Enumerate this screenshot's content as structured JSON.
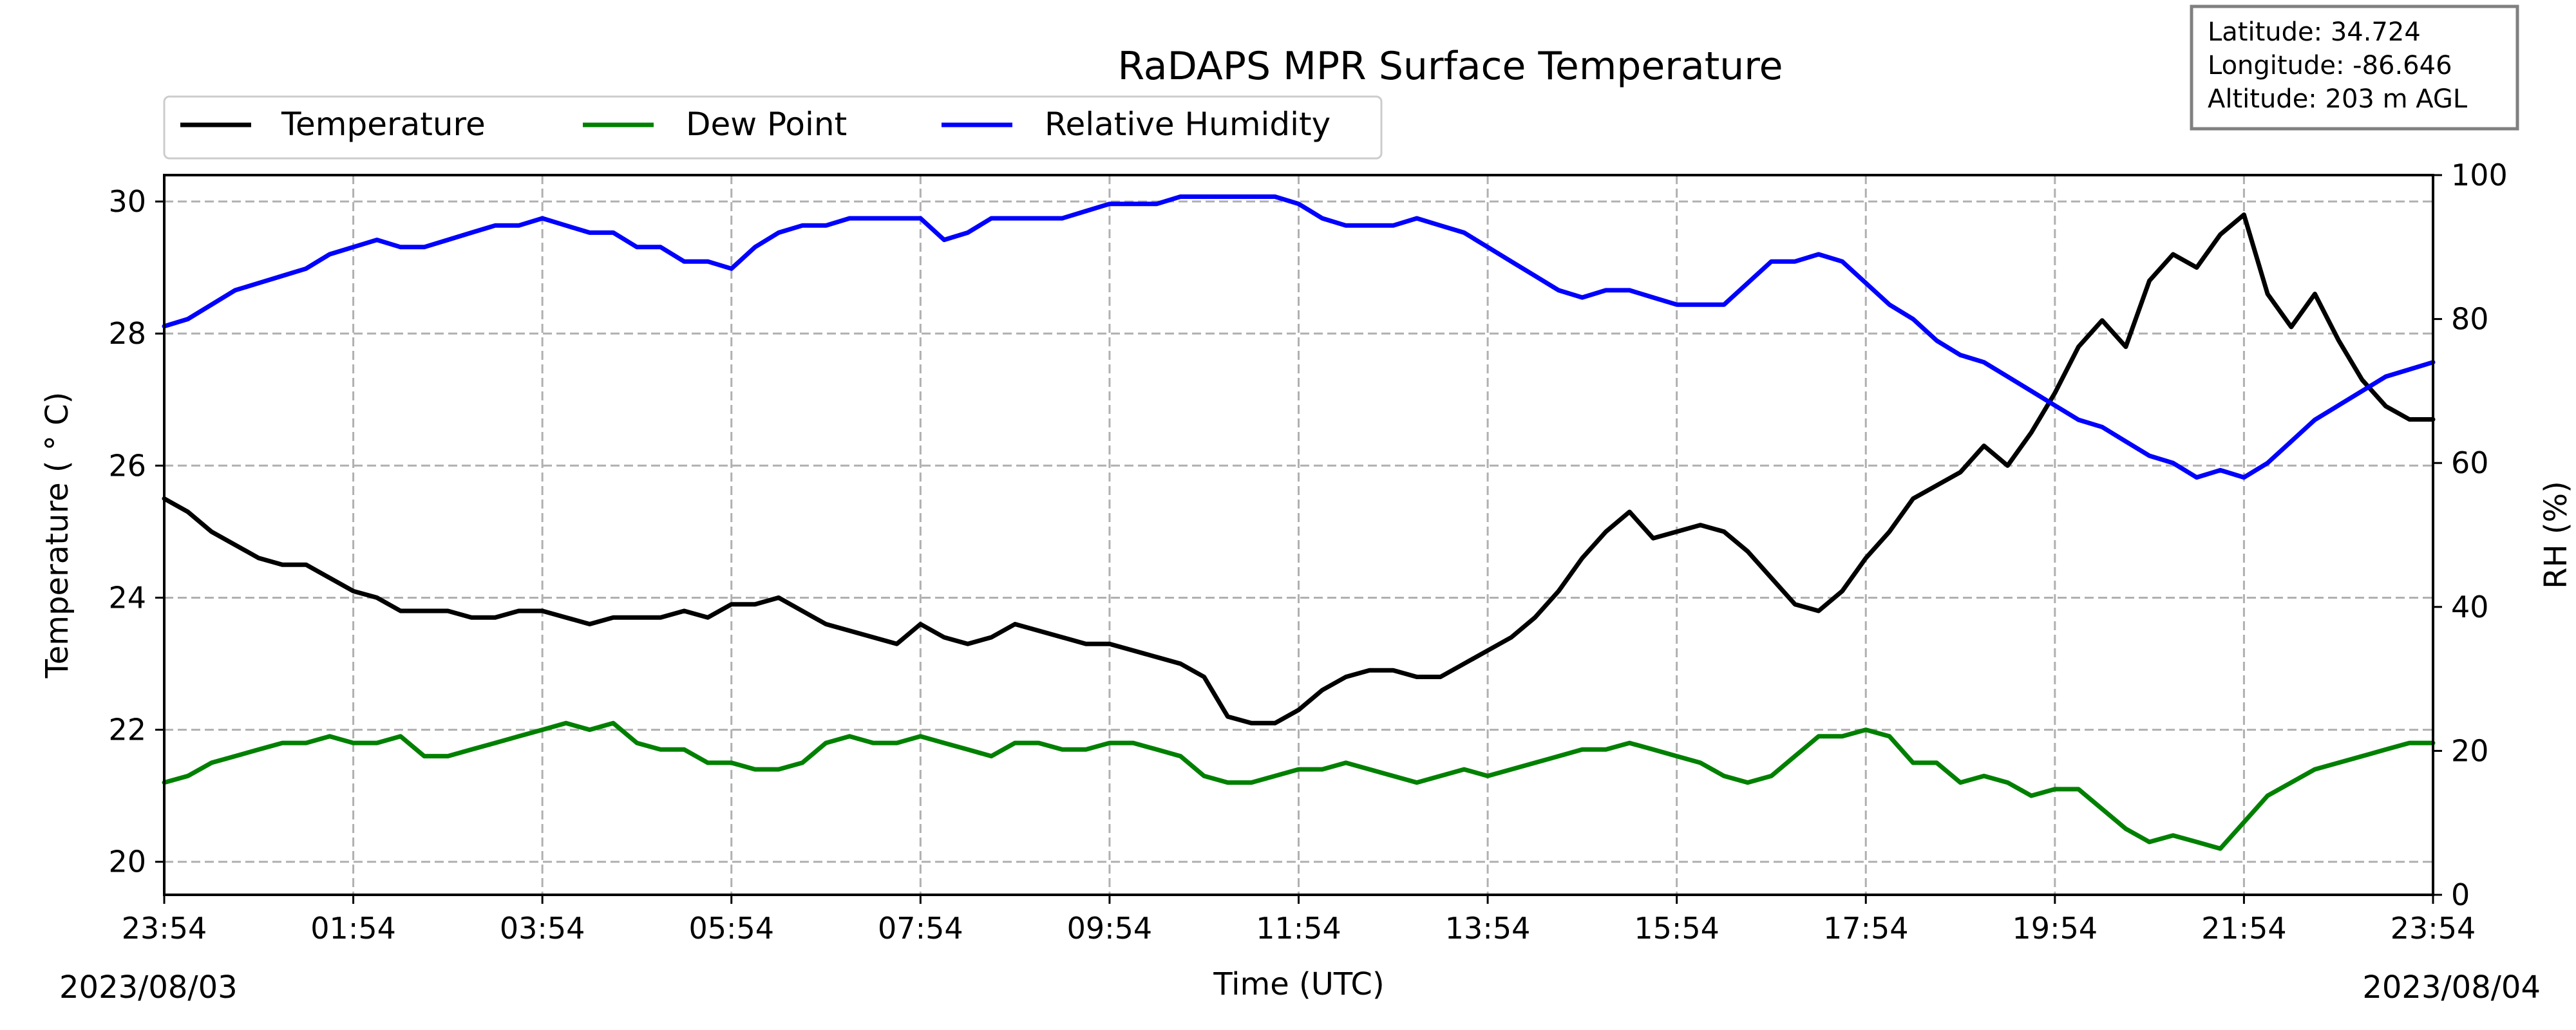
{
  "chart_data": {
    "type": "line",
    "title": "RaDAPS MPR Surface Temperature",
    "xlabel": "Time (UTC)",
    "ylabel": "Temperature ( $^\\circ$C)",
    "ylabel_display": "Temperature ( ° C)",
    "y2label": "RH (%)",
    "x_ticks": [
      "23:54",
      "01:54",
      "03:54",
      "05:54",
      "07:54",
      "09:54",
      "11:54",
      "13:54",
      "15:54",
      "17:54",
      "19:54",
      "21:54",
      "23:54"
    ],
    "x_range_hours": [
      0,
      24
    ],
    "start_date": "2023/08/03",
    "end_date": "2023/08/04",
    "ylim": [
      19.5,
      30.4
    ],
    "yticks": [
      20,
      22,
      24,
      26,
      28,
      30
    ],
    "y2lim": [
      0,
      100
    ],
    "y2ticks": [
      0,
      20,
      40,
      60,
      80,
      100
    ],
    "grid": true,
    "legend_placement": "top-left, outside",
    "info_box": {
      "lines": [
        "Latitude: 34.724",
        "Longitude: -86.646",
        "Altitude: 203 m AGL"
      ]
    },
    "series": [
      {
        "name": "Temperature",
        "axis": "left",
        "color": "#000000",
        "x": [
          0,
          0.25,
          0.5,
          0.75,
          1,
          1.25,
          1.5,
          1.75,
          2,
          2.25,
          2.5,
          2.75,
          3,
          3.25,
          3.5,
          3.75,
          4,
          4.25,
          4.5,
          4.75,
          5,
          5.25,
          5.5,
          5.75,
          6,
          6.25,
          6.5,
          6.75,
          7,
          7.25,
          7.5,
          7.75,
          8,
          8.25,
          8.5,
          8.75,
          9,
          9.25,
          9.5,
          9.75,
          10,
          10.25,
          10.5,
          10.75,
          11,
          11.25,
          11.5,
          11.75,
          12,
          12.25,
          12.5,
          12.75,
          13,
          13.25,
          13.5,
          13.75,
          14,
          14.25,
          14.5,
          14.75,
          15,
          15.25,
          15.5,
          15.75,
          16,
          16.25,
          16.5,
          16.75,
          17,
          17.25,
          17.5,
          17.75,
          18,
          18.25,
          18.5,
          18.75,
          19,
          19.25,
          19.5,
          19.75,
          20,
          20.25,
          20.5,
          20.75,
          21,
          21.25,
          21.5,
          21.75,
          22,
          22.25,
          22.5,
          22.75,
          23,
          23.25,
          23.5,
          23.75,
          24
        ],
        "y": [
          25.5,
          25.3,
          25.0,
          24.8,
          24.6,
          24.5,
          24.5,
          24.3,
          24.1,
          24.0,
          23.8,
          23.8,
          23.8,
          23.7,
          23.7,
          23.8,
          23.8,
          23.7,
          23.6,
          23.7,
          23.7,
          23.7,
          23.8,
          23.7,
          23.9,
          23.9,
          24.0,
          23.8,
          23.6,
          23.5,
          23.4,
          23.3,
          23.6,
          23.4,
          23.3,
          23.4,
          23.6,
          23.5,
          23.4,
          23.3,
          23.3,
          23.2,
          23.1,
          23.0,
          22.8,
          22.2,
          22.1,
          22.1,
          22.3,
          22.6,
          22.8,
          22.9,
          22.9,
          22.8,
          22.8,
          23.0,
          23.2,
          23.4,
          23.7,
          24.1,
          24.6,
          25.0,
          25.3,
          24.9,
          25.0,
          25.1,
          25.0,
          24.7,
          24.3,
          23.9,
          23.8,
          24.1,
          24.6,
          25.0,
          25.5,
          25.7,
          25.9,
          26.3,
          26.0,
          26.5,
          27.1,
          27.8,
          28.2,
          27.8,
          28.8,
          29.2,
          29.0,
          29.5,
          29.8,
          28.6,
          28.1,
          28.6,
          27.9,
          27.3,
          26.9,
          26.7,
          26.7
        ]
      },
      {
        "name": "Dew Point",
        "axis": "left",
        "color": "#008000",
        "x": [
          0,
          0.25,
          0.5,
          0.75,
          1,
          1.25,
          1.5,
          1.75,
          2,
          2.25,
          2.5,
          2.75,
          3,
          3.25,
          3.5,
          3.75,
          4,
          4.25,
          4.5,
          4.75,
          5,
          5.25,
          5.5,
          5.75,
          6,
          6.25,
          6.5,
          6.75,
          7,
          7.25,
          7.5,
          7.75,
          8,
          8.25,
          8.5,
          8.75,
          9,
          9.25,
          9.5,
          9.75,
          10,
          10.25,
          10.5,
          10.75,
          11,
          11.25,
          11.5,
          11.75,
          12,
          12.25,
          12.5,
          12.75,
          13,
          13.25,
          13.5,
          13.75,
          14,
          14.25,
          14.5,
          14.75,
          15,
          15.25,
          15.5,
          15.75,
          16,
          16.25,
          16.5,
          16.75,
          17,
          17.25,
          17.5,
          17.75,
          18,
          18.25,
          18.5,
          18.75,
          19,
          19.25,
          19.5,
          19.75,
          20,
          20.25,
          20.5,
          20.75,
          21,
          21.25,
          21.5,
          21.75,
          22,
          22.25,
          22.5,
          22.75,
          23,
          23.25,
          23.5,
          23.75,
          24
        ],
        "y": [
          21.2,
          21.3,
          21.5,
          21.6,
          21.7,
          21.8,
          21.8,
          21.9,
          21.8,
          21.8,
          21.9,
          21.6,
          21.6,
          21.7,
          21.8,
          21.9,
          22.0,
          22.1,
          22.0,
          22.1,
          21.8,
          21.7,
          21.7,
          21.5,
          21.5,
          21.4,
          21.4,
          21.5,
          21.8,
          21.9,
          21.8,
          21.8,
          21.9,
          21.8,
          21.7,
          21.6,
          21.8,
          21.8,
          21.7,
          21.7,
          21.8,
          21.8,
          21.7,
          21.6,
          21.3,
          21.2,
          21.2,
          21.3,
          21.4,
          21.4,
          21.5,
          21.4,
          21.3,
          21.2,
          21.3,
          21.4,
          21.3,
          21.4,
          21.5,
          21.6,
          21.7,
          21.7,
          21.8,
          21.7,
          21.6,
          21.5,
          21.3,
          21.2,
          21.3,
          21.6,
          21.9,
          21.9,
          22.0,
          21.9,
          21.5,
          21.5,
          21.2,
          21.3,
          21.2,
          21.0,
          21.1,
          21.1,
          20.8,
          20.5,
          20.3,
          20.4,
          20.3,
          20.2,
          20.6,
          21.0,
          21.2,
          21.4,
          21.5,
          21.6,
          21.7,
          21.8,
          21.8
        ]
      },
      {
        "name": "Relative Humidity",
        "axis": "right",
        "color": "#0000ff",
        "x": [
          0,
          0.25,
          0.5,
          0.75,
          1,
          1.25,
          1.5,
          1.75,
          2,
          2.25,
          2.5,
          2.75,
          3,
          3.25,
          3.5,
          3.75,
          4,
          4.25,
          4.5,
          4.75,
          5,
          5.25,
          5.5,
          5.75,
          6,
          6.25,
          6.5,
          6.75,
          7,
          7.25,
          7.5,
          7.75,
          8,
          8.25,
          8.5,
          8.75,
          9,
          9.25,
          9.5,
          9.75,
          10,
          10.25,
          10.5,
          10.75,
          11,
          11.25,
          11.5,
          11.75,
          12,
          12.25,
          12.5,
          12.75,
          13,
          13.25,
          13.5,
          13.75,
          14,
          14.25,
          14.5,
          14.75,
          15,
          15.25,
          15.5,
          15.75,
          16,
          16.25,
          16.5,
          16.75,
          17,
          17.25,
          17.5,
          17.75,
          18,
          18.25,
          18.5,
          18.75,
          19,
          19.25,
          19.5,
          19.75,
          20,
          20.25,
          20.5,
          20.75,
          21,
          21.25,
          21.5,
          21.75,
          22,
          22.25,
          22.5,
          22.75,
          23,
          23.25,
          23.5,
          23.75,
          24
        ],
        "y": [
          79,
          80,
          82,
          84,
          85,
          86,
          87,
          89,
          90,
          91,
          90,
          90,
          91,
          92,
          93,
          93,
          94,
          93,
          92,
          92,
          90,
          90,
          88,
          88,
          87,
          90,
          92,
          93,
          93,
          94,
          94,
          94,
          94,
          91,
          92,
          94,
          94,
          94,
          94,
          95,
          96,
          96,
          96,
          97,
          97,
          97,
          97,
          97,
          96,
          94,
          93,
          93,
          93,
          94,
          93,
          92,
          90,
          88,
          86,
          84,
          83,
          84,
          84,
          83,
          82,
          82,
          82,
          85,
          88,
          88,
          89,
          88,
          85,
          82,
          80,
          77,
          75,
          74,
          72,
          70,
          68,
          66,
          65,
          63,
          61,
          60,
          58,
          59,
          58,
          60,
          63,
          66,
          68,
          70,
          72,
          73,
          74
        ]
      }
    ]
  }
}
